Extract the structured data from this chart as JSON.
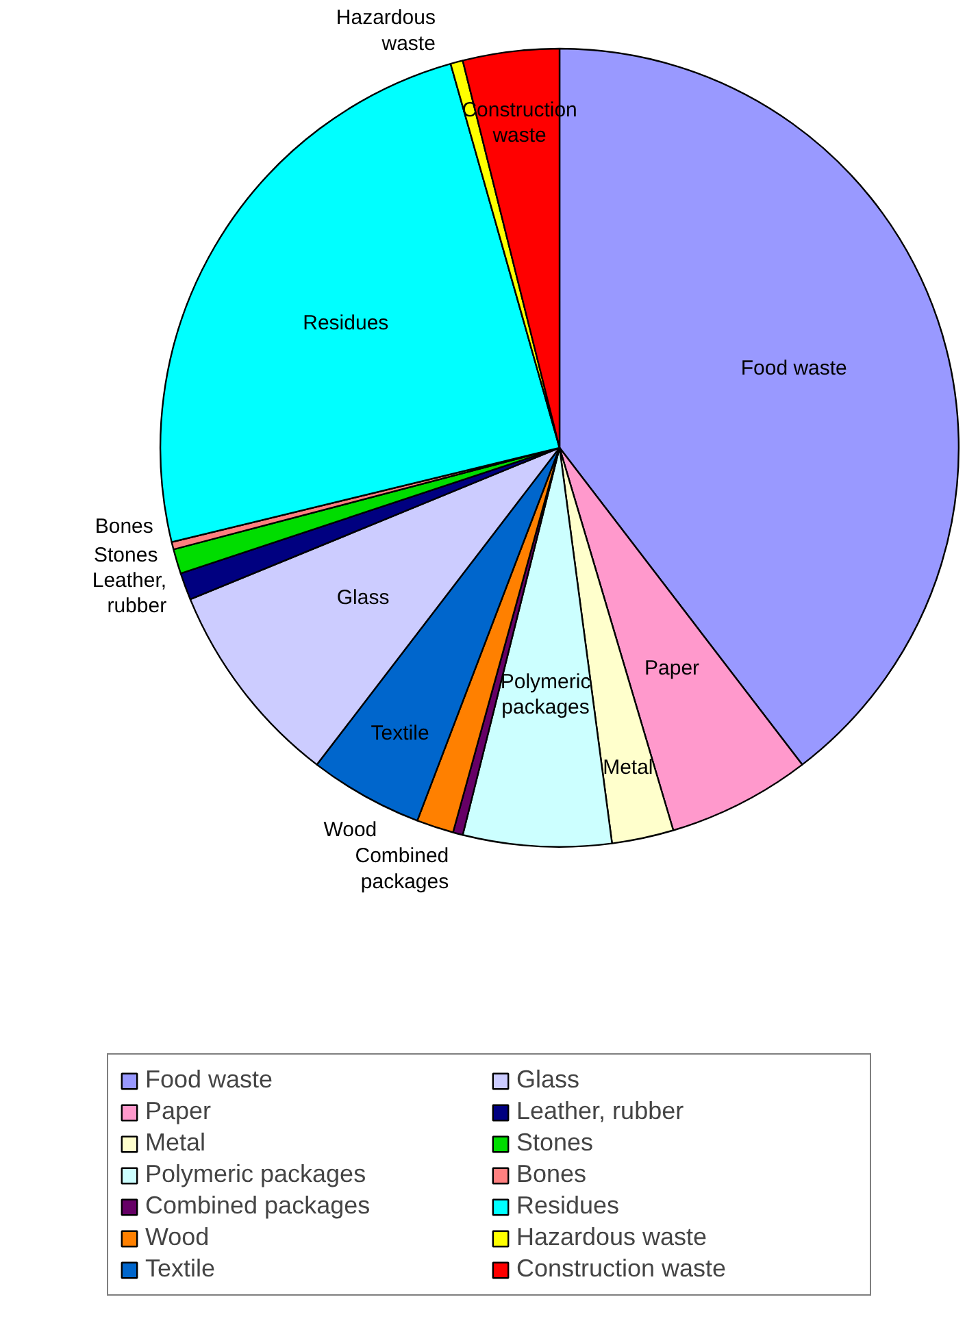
{
  "chart_data": {
    "type": "pie",
    "legend": "bottom",
    "categories": [
      "Food waste",
      "Paper",
      "Metal",
      "Polymeric packages",
      "Combined packages",
      "Wood",
      "Textile",
      "Glass",
      "Leather, rubber",
      "Stones",
      "Bones",
      "Residues",
      "Hazardous waste",
      "Construction waste"
    ],
    "values": [
      39.6,
      5.8,
      2.5,
      6.0,
      0.4,
      1.5,
      4.6,
      8.4,
      1.1,
      1.0,
      0.3,
      24.4,
      0.5,
      3.9
    ],
    "colors": [
      "#9999ff",
      "#ff99cc",
      "#ffffcc",
      "#ccffff",
      "#660066",
      "#ff8000",
      "#0066cc",
      "#ccccff",
      "#000080",
      "#00dd00",
      "#ff8080",
      "#00ffff",
      "#ffff00",
      "#ff0000"
    ]
  }
}
